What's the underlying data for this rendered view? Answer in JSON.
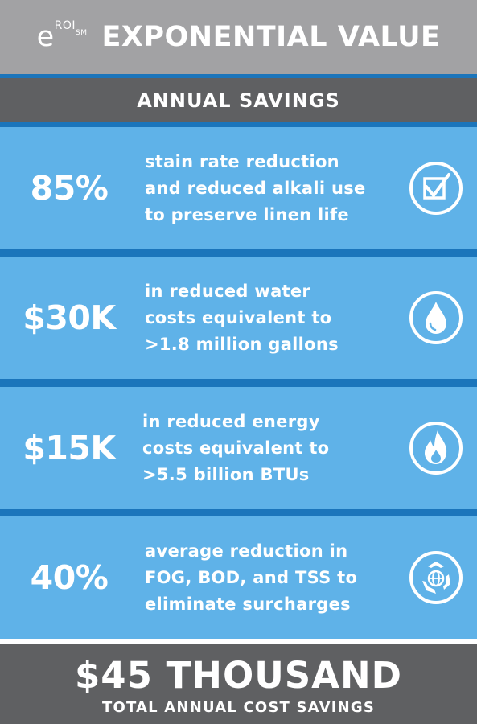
{
  "header": {
    "brand_e": "e",
    "brand_roi": "ROI",
    "brand_sm": "SM",
    "title": "EXPONENTIAL VALUE"
  },
  "subheader": {
    "title": "ANNUAL SAVINGS"
  },
  "rows": [
    {
      "value": "85%",
      "lines": [
        "stain rate reduction",
        "and reduced alkali use",
        "to preserve linen life"
      ],
      "icon": "checkbox-icon"
    },
    {
      "value": "$30K",
      "lines": [
        "in reduced water",
        "costs equivalent to",
        ">1.8 million gallons"
      ],
      "icon": "water-drop-icon"
    },
    {
      "value": "$15K",
      "lines": [
        "in reduced energy",
        "costs equivalent to",
        ">5.5 billion BTUs"
      ],
      "icon": "flame-icon"
    },
    {
      "value": "40%",
      "lines": [
        "average reduction in",
        "FOG, BOD, and TSS to",
        "eliminate surcharges"
      ],
      "icon": "recycle-globe-icon"
    }
  ],
  "total": {
    "amount": "$45 THOUSAND",
    "caption": "TOTAL ANNUAL COST SAVINGS"
  },
  "colors": {
    "header_gray": "#a2a2a4",
    "dark_gray": "#5f6062",
    "row_blue": "#5fb2e8",
    "divider_blue": "#1b75bb",
    "text": "#ffffff"
  }
}
